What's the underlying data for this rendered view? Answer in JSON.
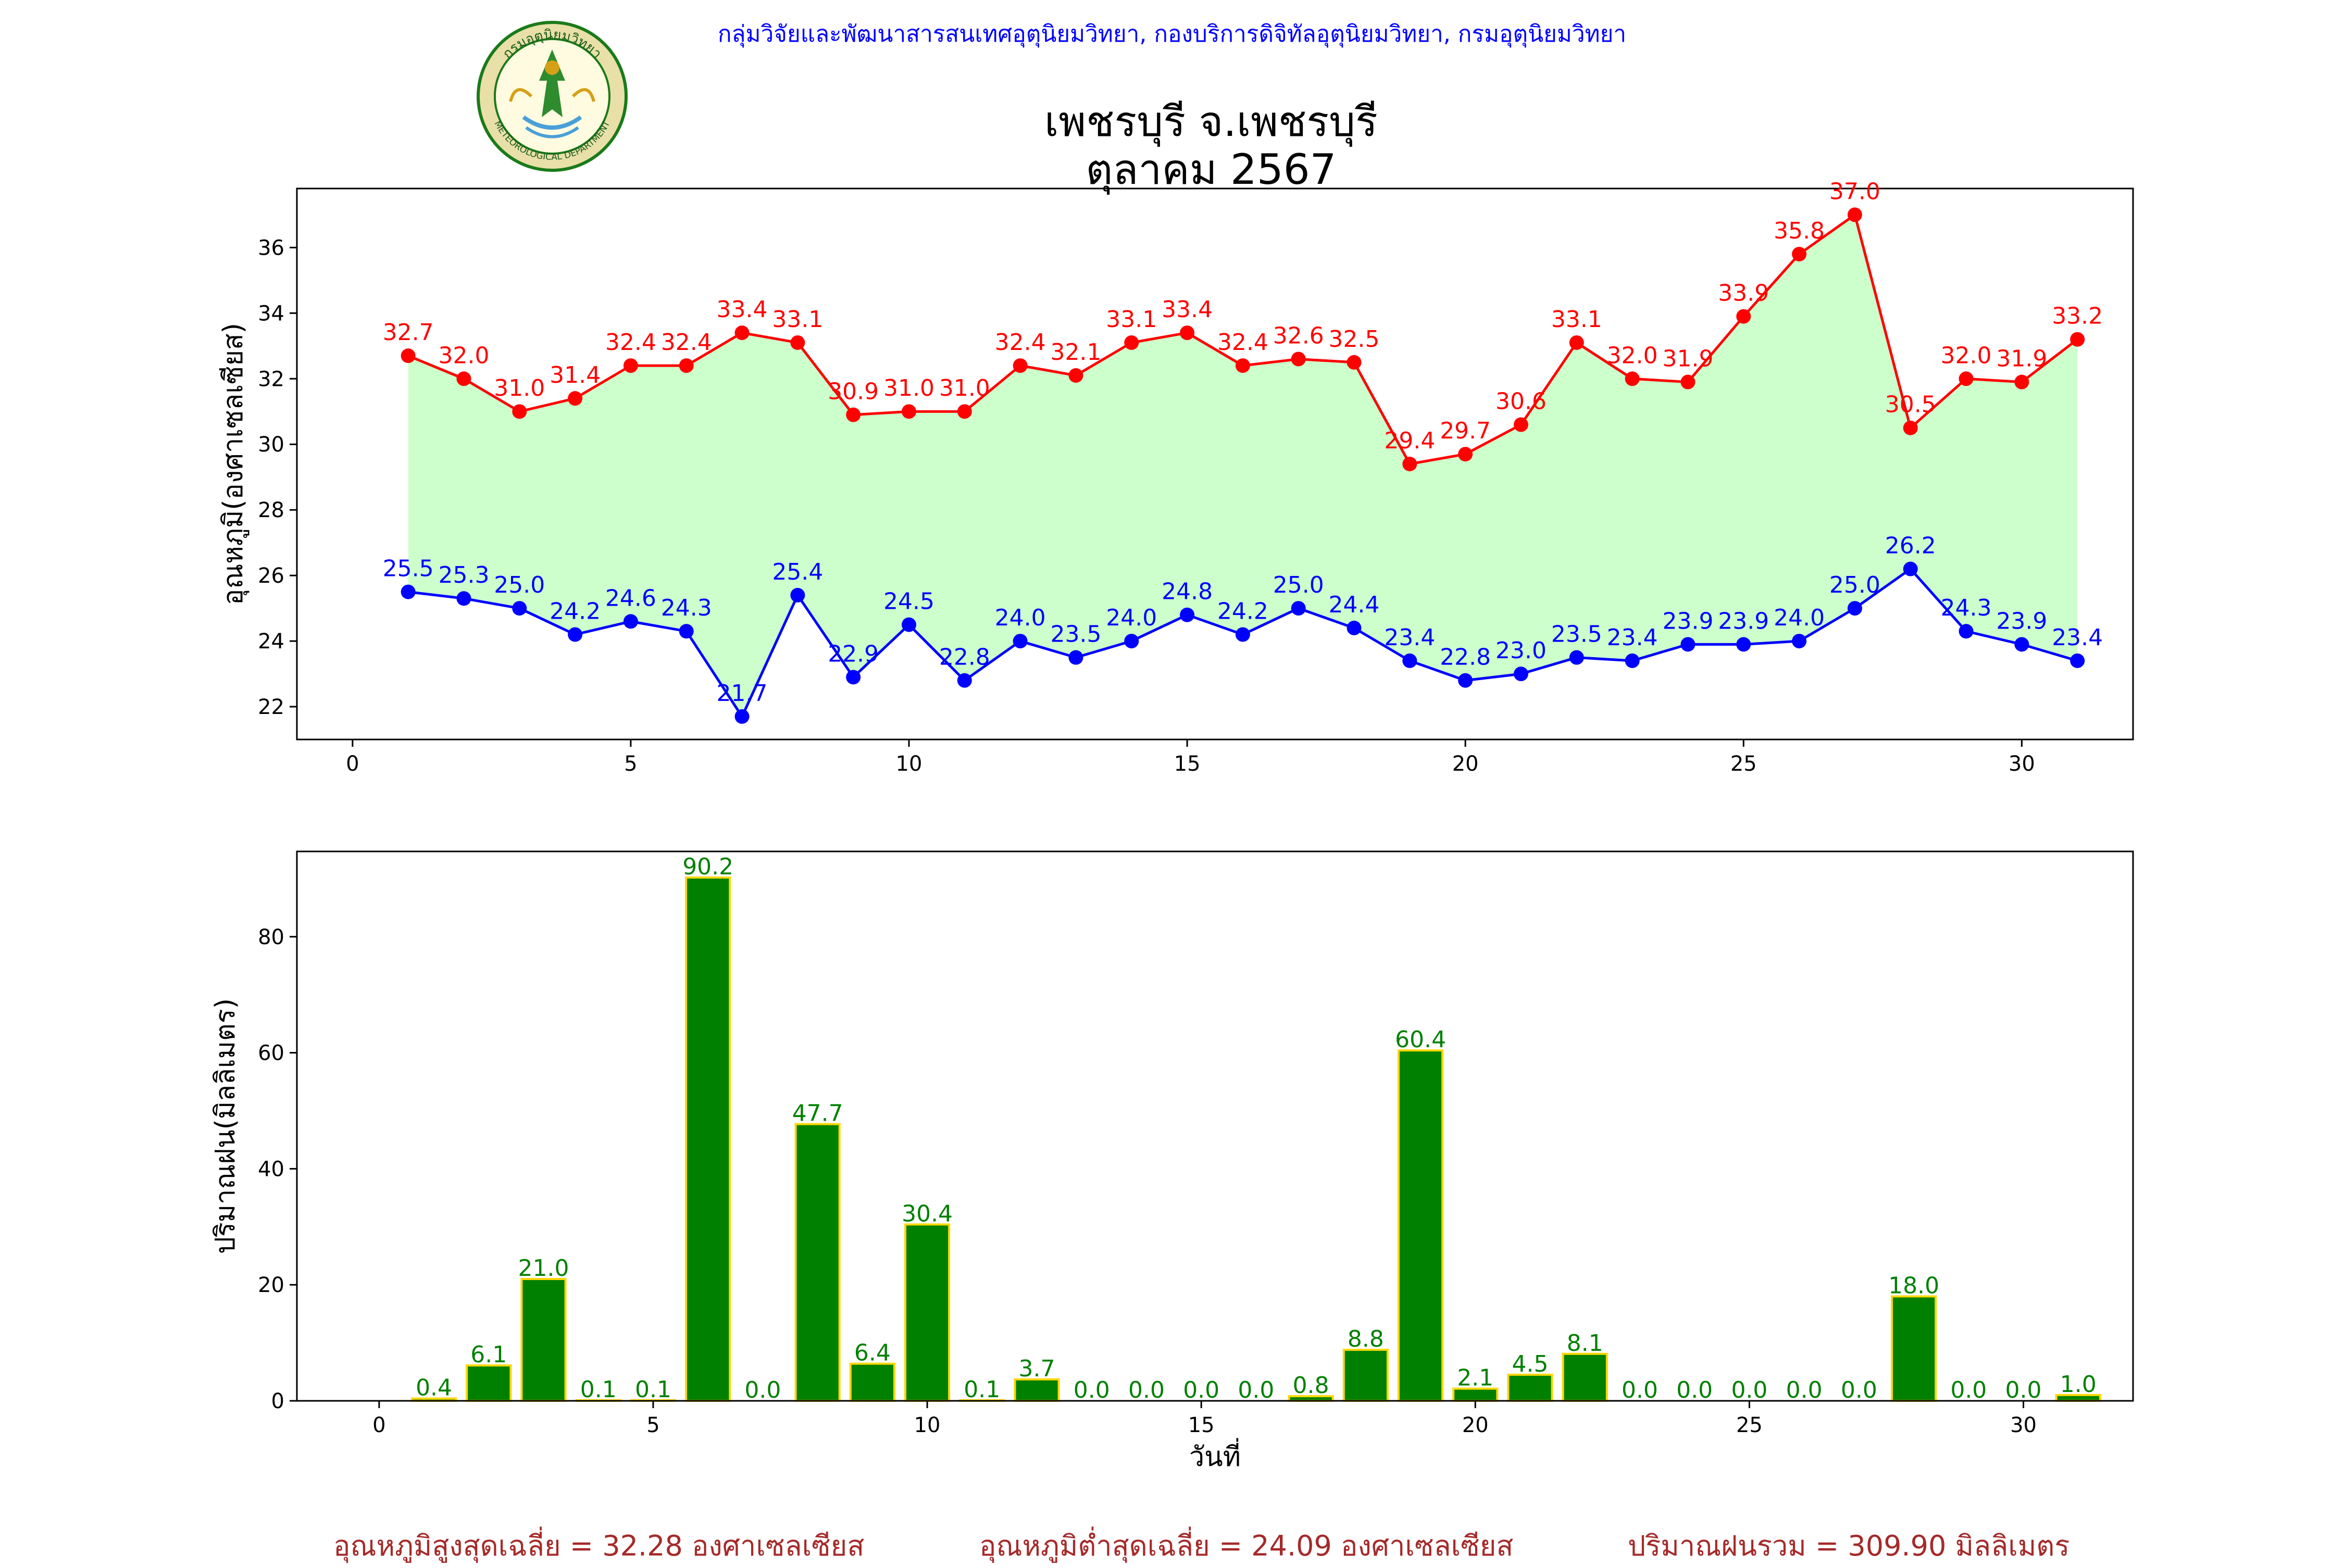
{
  "header": {
    "organization": "กลุ่มวิจัยและพัฒนาสารสนเทศอุตุนิยมวิทยา, กองบริการดิจิทัลอุตุนิยมวิทยา, กรมอุตุนิยมวิทยา",
    "station": "เพชรบุรี จ.เพชรบุรี",
    "period": "ตุลาคม 2567"
  },
  "logo": {
    "text_top": "กรมอุตุนิยมวิทยา",
    "text_bottom": "METEOROLOGICAL DEPARTMENT"
  },
  "summary": {
    "avg_max": "อุณหภูมิสูงสุดเฉลี่ย = 32.28 องศาเซลเซียส",
    "avg_min": "อุณหภูมิต่ำสุดเฉลี่ย = 24.09 องศาเซลเซียส",
    "total_rain": "ปริมาณฝนรวม = 309.90 มิลลิเมตร"
  },
  "colors": {
    "max_temp": "#ff0000",
    "min_temp": "#0000ff",
    "fill": "#ccffcc",
    "rain_bar": "#008000",
    "rain_edge": "#ffd700",
    "rain_label": "#008000",
    "summary": "#a52a2a"
  },
  "chart_data": [
    {
      "type": "line",
      "ylabel": "อุณหภูมิ(องศาเซลเซียส)",
      "xlabel": "",
      "xlim": [
        -1,
        32
      ],
      "ylim": [
        21,
        37.8
      ],
      "xticks": [
        0,
        5,
        10,
        15,
        20,
        25,
        30
      ],
      "yticks": [
        22,
        24,
        26,
        28,
        30,
        32,
        34,
        36
      ],
      "x": [
        1,
        2,
        3,
        4,
        5,
        6,
        7,
        8,
        9,
        10,
        11,
        12,
        13,
        14,
        15,
        16,
        17,
        18,
        19,
        20,
        21,
        22,
        23,
        24,
        25,
        26,
        27,
        28,
        29,
        30,
        31
      ],
      "series": [
        {
          "values": [
            32.7,
            32.0,
            31.0,
            31.4,
            32.4,
            32.4,
            33.4,
            33.1,
            30.9,
            31.0,
            31.0,
            32.4,
            32.1,
            33.1,
            33.4,
            32.4,
            32.6,
            32.5,
            29.4,
            29.7,
            30.6,
            33.1,
            32.0,
            31.9,
            33.9,
            35.8,
            37.0,
            30.5,
            32.0,
            31.9,
            33.2
          ]
        },
        {
          "values": [
            25.5,
            25.3,
            25.0,
            24.2,
            24.6,
            24.3,
            21.7,
            25.4,
            22.9,
            24.5,
            22.8,
            24.0,
            23.5,
            24.0,
            24.8,
            24.2,
            25.0,
            24.4,
            23.4,
            22.8,
            23.0,
            23.5,
            23.4,
            23.9,
            23.9,
            24.0,
            25.0,
            26.2,
            24.3,
            23.9,
            23.4
          ]
        }
      ]
    },
    {
      "type": "bar",
      "ylabel": "ปริมาณฝน(มิลลิเมตร)",
      "xlabel": "วันที่",
      "xlim": [
        -1.5,
        32
      ],
      "ylim": [
        0,
        94.7
      ],
      "xticks": [
        0,
        5,
        10,
        15,
        20,
        25,
        30
      ],
      "yticks": [
        0,
        20,
        40,
        60,
        80
      ],
      "x": [
        1,
        2,
        3,
        4,
        5,
        6,
        7,
        8,
        9,
        10,
        11,
        12,
        13,
        14,
        15,
        16,
        17,
        18,
        19,
        20,
        21,
        22,
        23,
        24,
        25,
        26,
        27,
        28,
        29,
        30,
        31
      ],
      "values": [
        0.4,
        6.1,
        21.0,
        0.1,
        0.1,
        90.2,
        0.0,
        47.7,
        6.4,
        30.4,
        0.1,
        3.7,
        0.0,
        0.0,
        0.0,
        0.0,
        0.8,
        8.8,
        60.4,
        2.1,
        4.5,
        8.1,
        0.0,
        0.0,
        0.0,
        0.0,
        0.0,
        18.0,
        0.0,
        0.0,
        1.0
      ]
    }
  ]
}
